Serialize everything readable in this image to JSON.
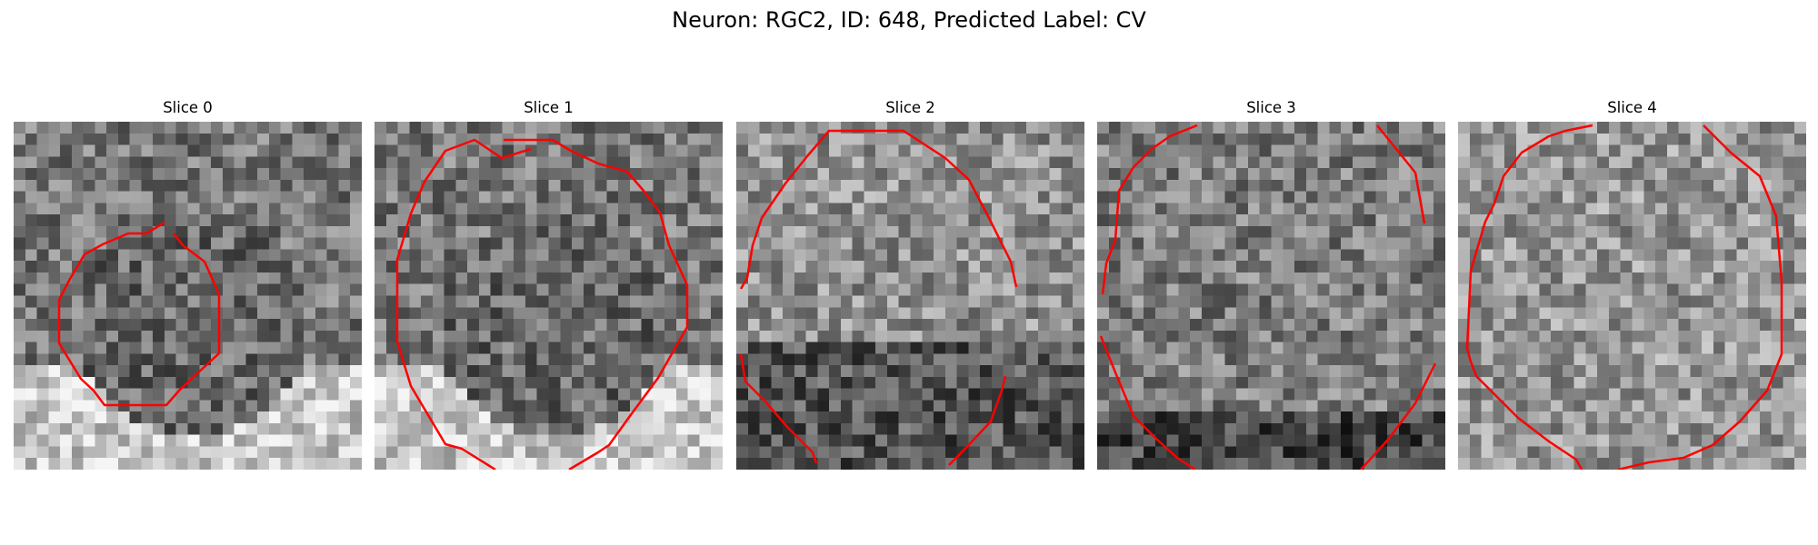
{
  "title": "Neuron: RGC2, ID: 648, Predicted Label: CV",
  "panels": [
    {
      "label": "Slice 0",
      "style": "cell-on-bright"
    },
    {
      "label": "Slice 1",
      "style": "cell-on-bright"
    },
    {
      "label": "Slice 2",
      "style": "full-field"
    },
    {
      "label": "Slice 3",
      "style": "full-field-dark-bottom"
    },
    {
      "label": "Slice 4",
      "style": "noisy-light"
    }
  ],
  "colors": {
    "contour": "#ff0000",
    "background": "#ffffff"
  }
}
